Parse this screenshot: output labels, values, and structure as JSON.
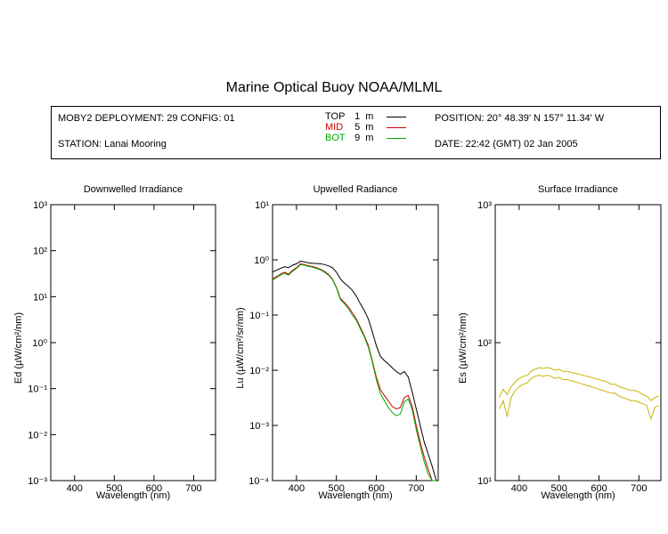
{
  "title": "Marine Optical Buoy NOAA/MLML",
  "header": {
    "deployment": "MOBY2 DEPLOYMENT: 29 CONFIG: 01",
    "station": "STATION: Lanai Mooring",
    "depths": [
      {
        "label": "TOP",
        "depth": "1",
        "unit": "m",
        "color": "#000000"
      },
      {
        "label": "MID",
        "depth": "5",
        "unit": "m",
        "color": "#cc0000"
      },
      {
        "label": "BOT",
        "depth": "9",
        "unit": "m",
        "color": "#00aa00"
      }
    ],
    "position": "POSITION: 20° 48.39' N   157° 11.34' W",
    "date": "DATE: 22:42 (GMT) 02 Jan 2005"
  },
  "chart_data": [
    {
      "type": "line",
      "title": "Downwelled Irradiance",
      "xlabel": "Wavelength (nm)",
      "ylabel": "Ed (µW/cm²/nm)",
      "xlim": [
        340,
        755
      ],
      "xticks": [
        400,
        500,
        600,
        700
      ],
      "ylim": [
        0.001,
        1000
      ],
      "yscale": "log",
      "yticks": [
        "10⁻³",
        "10⁻²",
        "10⁻¹",
        "10⁰",
        "10¹",
        "10²",
        "10³"
      ],
      "series": []
    },
    {
      "type": "line",
      "title": "Upwelled Radiance",
      "xlabel": "Wavelength (nm)",
      "ylabel": "Lu (µW/cm²/sr/nm)",
      "xlim": [
        340,
        755
      ],
      "xticks": [
        400,
        500,
        600,
        700
      ],
      "ylim": [
        0.0001,
        10
      ],
      "yscale": "log",
      "yticks": [
        "10⁻⁴",
        "10⁻³",
        "10⁻²",
        "10⁻¹",
        "10⁰",
        "10¹"
      ],
      "series": [
        {
          "color": "#000000",
          "x": [
            340,
            350,
            360,
            370,
            380,
            390,
            400,
            410,
            420,
            430,
            440,
            450,
            460,
            470,
            480,
            490,
            500,
            510,
            520,
            530,
            540,
            550,
            560,
            570,
            580,
            590,
            600,
            610,
            620,
            630,
            640,
            650,
            660,
            670,
            680,
            690,
            700,
            710,
            720,
            730,
            740,
            750
          ],
          "y": [
            0.6,
            0.65,
            0.7,
            0.75,
            0.72,
            0.8,
            0.85,
            0.95,
            0.92,
            0.88,
            0.87,
            0.86,
            0.85,
            0.82,
            0.78,
            0.72,
            0.6,
            0.45,
            0.38,
            0.33,
            0.28,
            0.22,
            0.16,
            0.12,
            0.085,
            0.05,
            0.028,
            0.018,
            0.015,
            0.013,
            0.011,
            0.0095,
            0.0085,
            0.0095,
            0.0075,
            0.004,
            0.002,
            0.001,
            0.0005,
            0.0003,
            0.00018,
            0.0001
          ]
        },
        {
          "color": "#cc0000",
          "x": [
            340,
            350,
            360,
            370,
            380,
            390,
            400,
            410,
            420,
            430,
            440,
            450,
            460,
            470,
            480,
            490,
            500,
            510,
            520,
            530,
            540,
            550,
            560,
            570,
            580,
            590,
            600,
            610,
            620,
            630,
            640,
            650,
            660,
            670,
            680,
            690,
            700,
            710,
            720,
            730,
            740,
            750
          ],
          "y": [
            0.45,
            0.5,
            0.55,
            0.6,
            0.55,
            0.65,
            0.72,
            0.85,
            0.82,
            0.78,
            0.76,
            0.72,
            0.68,
            0.62,
            0.55,
            0.45,
            0.32,
            0.2,
            0.17,
            0.14,
            0.11,
            0.085,
            0.06,
            0.042,
            0.028,
            0.015,
            0.0075,
            0.0045,
            0.0035,
            0.0028,
            0.0022,
            0.002,
            0.0021,
            0.0032,
            0.0035,
            0.0022,
            0.001,
            0.0005,
            0.00027,
            0.00016,
            0.0001,
            0.0001
          ]
        },
        {
          "color": "#00aa00",
          "x": [
            340,
            350,
            360,
            370,
            380,
            390,
            400,
            410,
            420,
            430,
            440,
            450,
            460,
            470,
            480,
            490,
            500,
            510,
            520,
            530,
            540,
            550,
            560,
            570,
            580,
            590,
            600,
            610,
            620,
            630,
            640,
            650,
            660,
            670,
            680,
            690,
            700,
            710,
            720,
            730,
            740,
            750
          ],
          "y": [
            0.43,
            0.48,
            0.53,
            0.57,
            0.53,
            0.62,
            0.7,
            0.82,
            0.8,
            0.76,
            0.74,
            0.7,
            0.66,
            0.6,
            0.53,
            0.44,
            0.31,
            0.19,
            0.16,
            0.13,
            0.1,
            0.08,
            0.056,
            0.04,
            0.026,
            0.014,
            0.0068,
            0.0038,
            0.0028,
            0.0021,
            0.0017,
            0.0015,
            0.0016,
            0.0027,
            0.003,
            0.0019,
            0.00085,
            0.00042,
            0.00022,
            0.00013,
            0.0001,
            0.0001
          ]
        }
      ]
    },
    {
      "type": "line",
      "title": "Surface Irradiance",
      "xlabel": "Wavelength (nm)",
      "ylabel": "Es (µW/cm²/nm)",
      "xlim": [
        340,
        755
      ],
      "xticks": [
        400,
        500,
        600,
        700
      ],
      "ylim": [
        10,
        1000
      ],
      "yscale": "log",
      "yticks": [
        "10¹",
        "10²",
        "10³"
      ],
      "series": [
        {
          "color": "#c8b400",
          "x": [
            350,
            360,
            370,
            380,
            390,
            400,
            410,
            420,
            430,
            440,
            450,
            460,
            470,
            480,
            490,
            500,
            510,
            520,
            530,
            540,
            550,
            560,
            570,
            580,
            590,
            600,
            610,
            620,
            630,
            640,
            650,
            660,
            670,
            680,
            690,
            700,
            710,
            720,
            730,
            740,
            750
          ],
          "y": [
            40,
            46,
            42,
            48,
            52,
            55,
            57,
            58,
            62,
            64,
            66,
            65,
            66,
            65,
            63,
            64,
            62,
            62,
            61,
            60,
            59,
            58,
            57,
            56,
            55,
            54,
            53,
            52,
            50,
            50,
            48,
            47,
            46,
            45,
            45,
            44,
            42,
            41,
            38,
            40,
            41
          ]
        },
        {
          "color": "#c8b400",
          "x": [
            350,
            360,
            370,
            380,
            390,
            400,
            410,
            420,
            430,
            440,
            450,
            460,
            470,
            480,
            490,
            500,
            510,
            520,
            530,
            540,
            550,
            560,
            570,
            580,
            590,
            600,
            610,
            620,
            630,
            640,
            650,
            660,
            670,
            680,
            690,
            700,
            710,
            720,
            730,
            740,
            750
          ],
          "y": [
            33,
            38,
            29,
            40,
            45,
            48,
            50,
            51,
            55,
            57,
            58,
            57,
            58,
            57,
            55,
            56,
            54,
            54,
            53,
            52,
            51,
            50,
            49,
            48,
            47,
            46,
            45,
            44,
            43,
            43,
            41,
            40,
            39,
            38,
            38,
            37,
            36,
            35,
            28,
            34,
            35
          ]
        }
      ]
    }
  ]
}
